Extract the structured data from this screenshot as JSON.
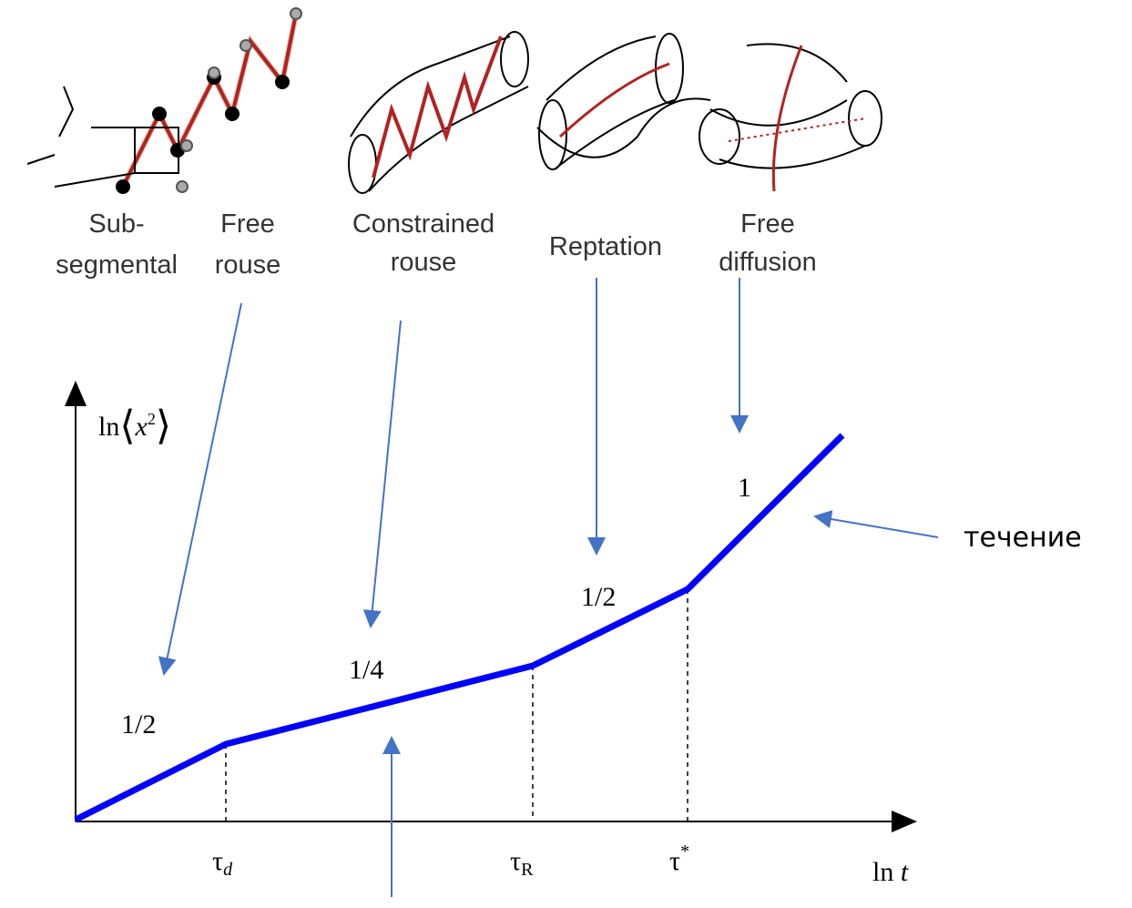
{
  "regimes": [
    {
      "lines": [
        "Sub-",
        "segmental"
      ]
    },
    {
      "lines": [
        "Free",
        "rouse"
      ]
    },
    {
      "lines": [
        "Constrained",
        "rouse"
      ]
    },
    {
      "lines": [
        "Reptation"
      ]
    },
    {
      "lines": [
        "Free",
        "diffusion"
      ]
    }
  ],
  "axes": {
    "y_label": {
      "prefix": "ln",
      "var": "x",
      "power": "2"
    },
    "x_label": {
      "prefix": "ln",
      "var": "t"
    }
  },
  "ticks": [
    {
      "symbol": "τ",
      "sub": "d"
    },
    {
      "symbol": "τ",
      "sub": "R"
    },
    {
      "symbol": "τ",
      "sup": "*"
    }
  ],
  "slopes": [
    "1/2",
    "1/4",
    "1/2",
    "1"
  ],
  "annotation": "течение"
}
